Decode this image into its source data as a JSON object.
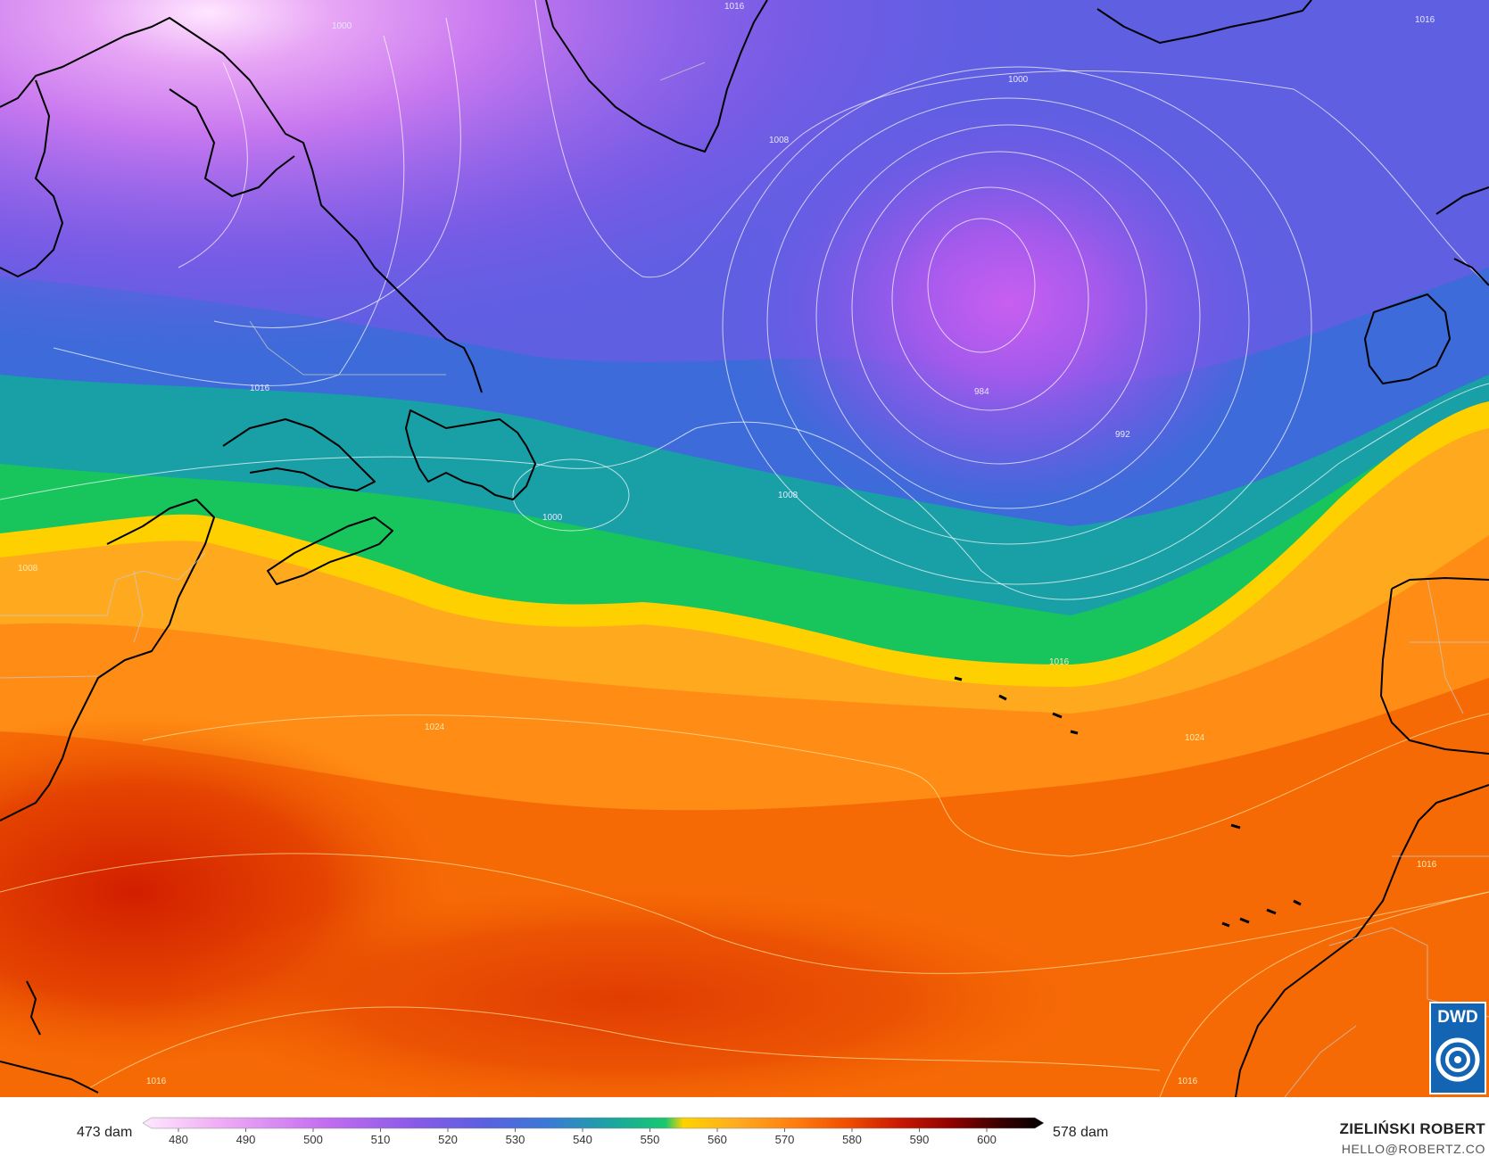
{
  "map": {
    "region": "North Atlantic",
    "isobar_labels": {
      "l1000_nw": "1000",
      "l1016_n": "1016",
      "l1000_e": "1000",
      "l1008_n": "1008",
      "l1016_ne": "1016",
      "l1016_w": "1016",
      "l1000_sfl": "1000",
      "l1008_mid": "1008",
      "l984": "984",
      "l992": "992",
      "l1016_mid": "1016",
      "l1024_w": "1024",
      "l1024_e": "1024",
      "l1016_sw": "1016",
      "l1016_se": "1016",
      "l1016_africa": "1016",
      "l1008_us": "1008"
    },
    "colors": {
      "deep_purple": "#b35bf0",
      "violet": "#7a5ae6",
      "blue": "#3b6fd8",
      "teal": "#1aa5a0",
      "green": "#18c85a",
      "yellow": "#ffd200",
      "orange": "#ff9a1a",
      "dark_orange": "#f06000",
      "red": "#dc2800"
    }
  },
  "colorbar": {
    "min_label": "473 dam",
    "max_label": "578 dam",
    "ticks": [
      "480",
      "490",
      "500",
      "510",
      "520",
      "530",
      "540",
      "550",
      "560",
      "570",
      "580",
      "590",
      "600"
    ]
  },
  "author": {
    "name": "ZIELIŃSKI ROBERT",
    "email": "HELLO@ROBERTZ.CO"
  },
  "logo": {
    "text": "DWD"
  }
}
